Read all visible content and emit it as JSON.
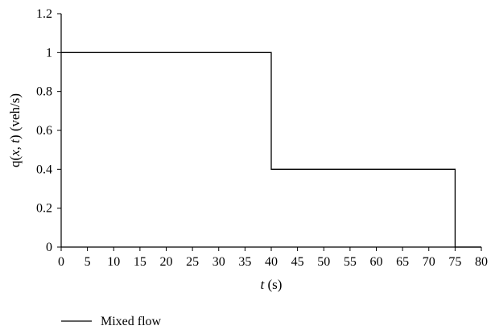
{
  "chart_data": {
    "type": "line",
    "title": "",
    "xlabel": "t (s)",
    "xlabel_parts": {
      "var": "t",
      "unit": " (s)"
    },
    "ylabel": "q(x, t) (veh/s)",
    "ylabel_parts": {
      "pre": "q(",
      "x": "x",
      "comma": ", ",
      "t": "t",
      "post": ") (veh/s)"
    },
    "xlim": [
      0,
      80
    ],
    "ylim": [
      0,
      1.2
    ],
    "x_ticks": [
      0,
      5,
      10,
      15,
      20,
      25,
      30,
      35,
      40,
      45,
      50,
      55,
      60,
      65,
      70,
      75,
      80
    ],
    "y_ticks": [
      0,
      0.2,
      0.4,
      0.6,
      0.8,
      1,
      1.2
    ],
    "grid": false,
    "legend_position": "bottom-left",
    "series": [
      {
        "name": "Mixed flow",
        "color": "#000000",
        "x": [
          0,
          40,
          40,
          75,
          75,
          80
        ],
        "y": [
          1,
          1,
          0.4,
          0.4,
          0,
          0
        ]
      }
    ]
  }
}
